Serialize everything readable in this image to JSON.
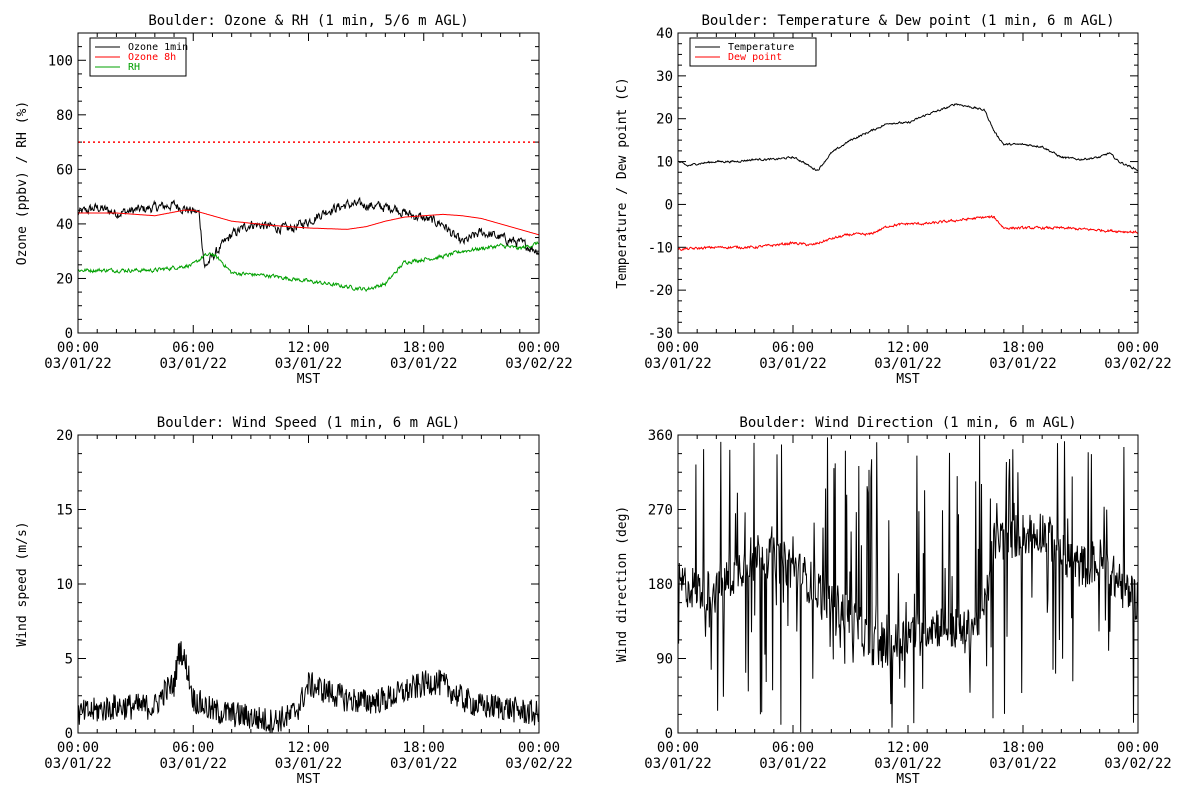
{
  "figure": {
    "background": "#ffffff"
  },
  "chart_data": [
    {
      "id": "ozone",
      "type": "line",
      "title": "Boulder: Ozone & RH (1 min, 5/6 m AGL)",
      "xlabel": "MST",
      "ylabel": "Ozone (ppbv) / RH (%)",
      "xlim": [
        0,
        24
      ],
      "ylim": [
        0,
        110
      ],
      "yticks": [
        0,
        20,
        40,
        60,
        80,
        100
      ],
      "xticks": [
        {
          "h": 0,
          "time": "00:00",
          "date": "03/01/22"
        },
        {
          "h": 6,
          "time": "06:00",
          "date": "03/01/22"
        },
        {
          "h": 12,
          "time": "12:00",
          "date": "03/01/22"
        },
        {
          "h": 18,
          "time": "18:00",
          "date": "03/01/22"
        },
        {
          "h": 24,
          "time": "00:00",
          "date": "03/02/22"
        }
      ],
      "legend": {
        "position": "top-left",
        "entries": [
          "Ozone 1min",
          "Ozone 8h",
          "RH"
        ]
      },
      "reference_lines": [
        {
          "y": 70,
          "color": "#ff0000",
          "style": "dotted"
        }
      ],
      "series": [
        {
          "name": "Ozone 1min",
          "color": "#000000",
          "noise": 3.0,
          "x": [
            0,
            1,
            2,
            3,
            4,
            5,
            5.8,
            6.3,
            6.6,
            7,
            7.5,
            8,
            9,
            10,
            11,
            12,
            13,
            14,
            15,
            16,
            16.5,
            17,
            18,
            19,
            19.5,
            20,
            21,
            22,
            23,
            24
          ],
          "y": [
            44,
            46,
            44,
            45,
            46,
            47,
            45,
            44,
            24,
            28,
            32,
            36,
            40,
            39,
            38,
            41,
            45,
            47,
            47,
            46,
            46,
            44,
            42,
            40,
            36,
            33,
            37,
            35,
            33,
            30
          ]
        },
        {
          "name": "Ozone 8h",
          "color": "#ff0000",
          "noise": 0,
          "x": [
            0,
            2,
            4,
            5.5,
            6,
            7,
            8,
            10,
            12,
            14,
            15,
            16,
            17,
            18,
            19,
            20,
            21,
            22,
            23,
            24
          ],
          "y": [
            44,
            44,
            43,
            45,
            45,
            43,
            41,
            39.5,
            38.5,
            38,
            39,
            41,
            42.5,
            43,
            43.5,
            43,
            42,
            40,
            38,
            36
          ]
        },
        {
          "name": "RH",
          "color": "#00a000",
          "noise": 1.2,
          "x": [
            0,
            2,
            4,
            6,
            6.5,
            7,
            7.5,
            8,
            10,
            12,
            14,
            15,
            16,
            16.5,
            17,
            18,
            19,
            20,
            21,
            22,
            23,
            24
          ],
          "y": [
            23,
            23,
            23,
            25,
            28,
            29,
            26,
            22,
            21,
            19,
            17,
            16,
            18,
            22,
            26,
            27,
            28,
            30,
            31,
            32,
            31,
            33
          ]
        }
      ]
    },
    {
      "id": "temperature",
      "type": "line",
      "title": "Boulder: Temperature & Dew point (1 min, 6 m AGL)",
      "xlabel": "MST",
      "ylabel": "Temperature / Dew point (C)",
      "xlim": [
        0,
        24
      ],
      "ylim": [
        -30,
        40
      ],
      "yticks": [
        -30,
        -20,
        -10,
        0,
        10,
        20,
        30,
        40
      ],
      "xticks": [
        {
          "h": 0,
          "time": "00:00",
          "date": "03/01/22"
        },
        {
          "h": 6,
          "time": "06:00",
          "date": "03/01/22"
        },
        {
          "h": 12,
          "time": "12:00",
          "date": "03/01/22"
        },
        {
          "h": 18,
          "time": "18:00",
          "date": "03/01/22"
        },
        {
          "h": 24,
          "time": "00:00",
          "date": "03/02/22"
        }
      ],
      "legend": {
        "position": "top-left",
        "entries": [
          "Temperature",
          "Dew point"
        ]
      },
      "series": [
        {
          "name": "Temperature",
          "color": "#000000",
          "noise": 0.4,
          "x": [
            0,
            0.5,
            1,
            2,
            3,
            4,
            5,
            6,
            6.5,
            7,
            7.3,
            8,
            9,
            10,
            11,
            12,
            13,
            14,
            14.5,
            15,
            16,
            16.5,
            17,
            18,
            19,
            20,
            21,
            22,
            22.5,
            23,
            24
          ],
          "y": [
            10,
            9,
            9.5,
            10,
            10,
            10.5,
            10.5,
            11,
            10,
            8.5,
            8,
            12,
            15,
            17,
            19,
            19,
            21,
            22.5,
            23.5,
            23,
            22,
            17,
            14,
            14,
            13.5,
            11,
            10.5,
            11,
            12,
            10,
            8
          ]
        },
        {
          "name": "Dew point",
          "color": "#ff0000",
          "noise": 0.5,
          "x": [
            0,
            2,
            4,
            6,
            7,
            8,
            9,
            10,
            11,
            12,
            13,
            14,
            15,
            16,
            16.5,
            17,
            18,
            20,
            22,
            24
          ],
          "y": [
            -10.5,
            -10,
            -10,
            -9,
            -9.5,
            -8,
            -7,
            -7,
            -5,
            -4.5,
            -4.5,
            -4,
            -3.5,
            -3,
            -3,
            -5.5,
            -5.5,
            -5.5,
            -6,
            -6.5
          ]
        }
      ]
    },
    {
      "id": "windspeed",
      "type": "line",
      "title": "Boulder: Wind Speed (1 min, 6 m AGL)",
      "xlabel": "MST",
      "ylabel": "Wind speed (m/s)",
      "xlim": [
        0,
        24
      ],
      "ylim": [
        0,
        20
      ],
      "yticks": [
        0,
        5,
        10,
        15,
        20
      ],
      "xticks": [
        {
          "h": 0,
          "time": "00:00",
          "date": "03/01/22"
        },
        {
          "h": 6,
          "time": "06:00",
          "date": "03/01/22"
        },
        {
          "h": 12,
          "time": "12:00",
          "date": "03/01/22"
        },
        {
          "h": 18,
          "time": "18:00",
          "date": "03/01/22"
        },
        {
          "h": 24,
          "time": "00:00",
          "date": "03/02/22"
        }
      ],
      "series": [
        {
          "name": "",
          "color": "#000000",
          "noise": 0.9,
          "x": [
            0,
            2,
            4,
            4.5,
            5,
            5.3,
            5.7,
            6,
            7,
            8,
            9,
            10,
            11,
            11.5,
            12,
            13,
            14,
            15,
            16,
            17,
            18,
            18.5,
            19,
            20,
            21,
            22,
            23,
            24
          ],
          "y": [
            1,
            1.5,
            1.5,
            2.5,
            3,
            5.5,
            4,
            2,
            1.2,
            1,
            0.8,
            0.5,
            0.8,
            1.5,
            3,
            2.5,
            2,
            1.8,
            2,
            2.5,
            3,
            3.2,
            3,
            2,
            1.5,
            1.5,
            1.2,
            1
          ]
        }
      ]
    },
    {
      "id": "winddir",
      "type": "line",
      "title": "Boulder: Wind Direction (1 min, 6 m AGL)",
      "xlabel": "MST",
      "ylabel": "Wind direction (deg)",
      "xlim": [
        0,
        24
      ],
      "ylim": [
        0,
        360
      ],
      "yticks": [
        0,
        90,
        180,
        270,
        360
      ],
      "xticks": [
        {
          "h": 0,
          "time": "00:00",
          "date": "03/01/22"
        },
        {
          "h": 6,
          "time": "06:00",
          "date": "03/01/22"
        },
        {
          "h": 12,
          "time": "12:00",
          "date": "03/01/22"
        },
        {
          "h": 18,
          "time": "18:00",
          "date": "03/01/22"
        },
        {
          "h": 24,
          "time": "00:00",
          "date": "03/02/22"
        }
      ],
      "series": [
        {
          "name": "",
          "color": "#000000",
          "noise": 90,
          "x": [
            0,
            2,
            4,
            6,
            8,
            9,
            10,
            11,
            12,
            13,
            14,
            15,
            16,
            16.5,
            17,
            18,
            19,
            20,
            21,
            22,
            23,
            24
          ],
          "y": [
            180,
            170,
            220,
            200,
            160,
            140,
            110,
            100,
            120,
            130,
            130,
            120,
            150,
            230,
            235,
            240,
            245,
            220,
            200,
            210,
            180,
            160
          ]
        }
      ]
    }
  ]
}
